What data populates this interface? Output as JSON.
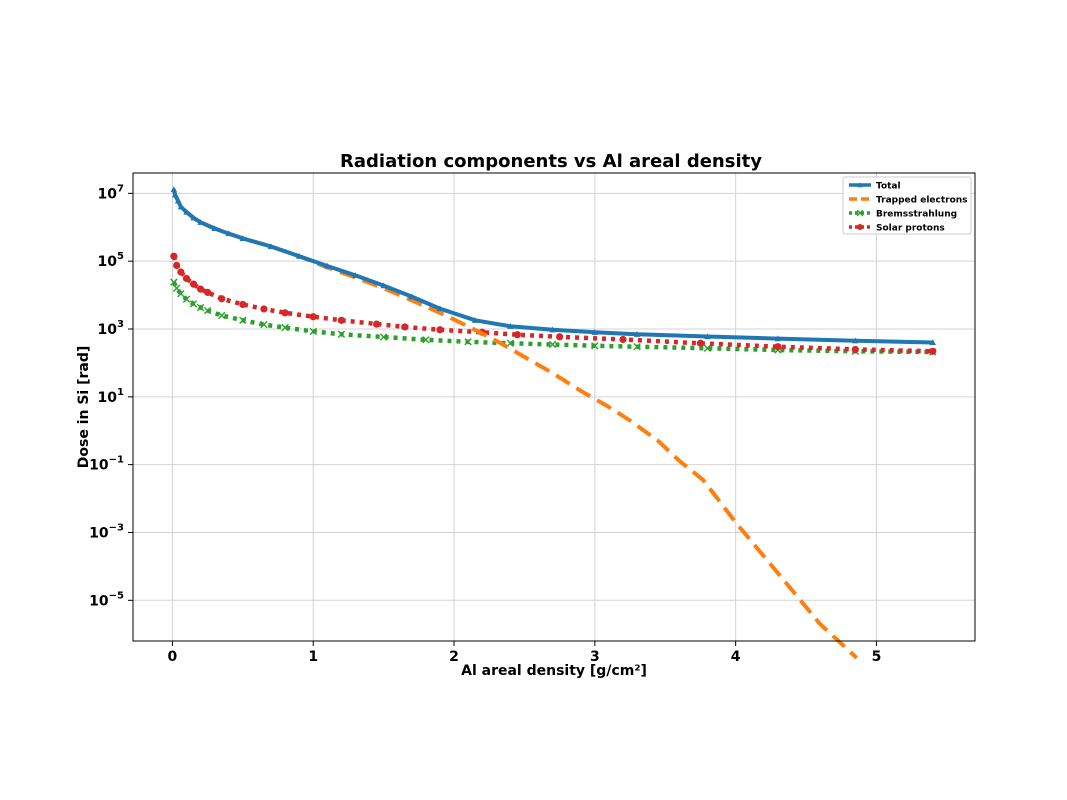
{
  "chart_data": {
    "type": "line",
    "title": "Radiation components vs Al areal density",
    "xlabel": "Al areal density [g/cm²]",
    "ylabel": "Dose in Si [rad]",
    "xlim": [
      -0.28,
      5.7
    ],
    "ylim_log10": [
      -6.2,
      7.6
    ],
    "yscale": "log",
    "grid": true,
    "legend_position": "top-right",
    "x_ticks": [
      "0",
      "1",
      "2",
      "3",
      "4",
      "5"
    ],
    "x_tick_values": [
      0,
      1,
      2,
      3,
      4,
      5
    ],
    "y_tick_exponents": [
      7,
      5,
      3,
      1,
      -1,
      -3,
      -5
    ],
    "series": [
      {
        "name": "Total",
        "color": "#1f77b4",
        "style": "solid",
        "marker": "triangle",
        "points": [
          [
            0.01,
            13000000
          ],
          [
            0.02,
            9000000
          ],
          [
            0.04,
            6000000
          ],
          [
            0.06,
            4000000
          ],
          [
            0.1,
            2800000
          ],
          [
            0.15,
            1900000
          ],
          [
            0.2,
            1400000
          ],
          [
            0.3,
            920000
          ],
          [
            0.4,
            650000
          ],
          [
            0.5,
            470000
          ],
          [
            0.7,
            270000
          ],
          [
            0.9,
            140000
          ],
          [
            1.1,
            72000
          ],
          [
            1.3,
            38000
          ],
          [
            1.5,
            19000
          ],
          [
            1.7,
            9000
          ],
          [
            1.9,
            4000
          ],
          [
            2.15,
            1800
          ],
          [
            2.4,
            1200
          ],
          [
            2.7,
            950
          ],
          [
            3.0,
            800
          ],
          [
            3.3,
            700
          ],
          [
            3.8,
            600
          ],
          [
            4.3,
            520
          ],
          [
            4.85,
            450
          ],
          [
            5.4,
            400
          ]
        ]
      },
      {
        "name": "Trapped electrons",
        "color": "#ff7f0e",
        "style": "dashed",
        "marker": "none",
        "points": [
          [
            0.01,
            13000000
          ],
          [
            0.02,
            9000000
          ],
          [
            0.04,
            6000000
          ],
          [
            0.06,
            4000000
          ],
          [
            0.1,
            2800000
          ],
          [
            0.15,
            1900000
          ],
          [
            0.2,
            1400000
          ],
          [
            0.3,
            920000
          ],
          [
            0.4,
            650000
          ],
          [
            0.5,
            470000
          ],
          [
            0.7,
            270000
          ],
          [
            0.9,
            140000
          ],
          [
            1.1,
            65000
          ],
          [
            1.3,
            33000
          ],
          [
            1.5,
            16000
          ],
          [
            1.7,
            7000
          ],
          [
            1.9,
            3000
          ],
          [
            2.1,
            1200
          ],
          [
            2.3,
            450
          ],
          [
            2.5,
            150
          ],
          [
            2.7,
            50
          ],
          [
            2.9,
            15
          ],
          [
            3.1,
            5
          ],
          [
            3.25,
            2
          ],
          [
            3.45,
            0.5
          ],
          [
            3.6,
            0.13
          ],
          [
            3.77,
            0.035
          ],
          [
            4.0,
            0.002
          ],
          [
            4.2,
            0.0002
          ],
          [
            4.4,
            2e-05
          ],
          [
            4.6,
            2e-06
          ],
          [
            4.86,
            2e-07
          ]
        ]
      },
      {
        "name": "Bremsstrahlung",
        "color": "#2ca02c",
        "style": "dotted",
        "marker": "x",
        "points": [
          [
            0.01,
            24000
          ],
          [
            0.03,
            16000
          ],
          [
            0.06,
            11000
          ],
          [
            0.1,
            7500
          ],
          [
            0.15,
            5500
          ],
          [
            0.2,
            4300
          ],
          [
            0.25,
            3500
          ],
          [
            0.35,
            2500
          ],
          [
            0.5,
            1800
          ],
          [
            0.65,
            1350
          ],
          [
            0.8,
            1100
          ],
          [
            1.0,
            850
          ],
          [
            1.2,
            700
          ],
          [
            1.5,
            580
          ],
          [
            1.8,
            480
          ],
          [
            2.1,
            420
          ],
          [
            2.4,
            380
          ],
          [
            2.7,
            350
          ],
          [
            3.0,
            320
          ],
          [
            3.3,
            300
          ],
          [
            3.8,
            270
          ],
          [
            4.3,
            240
          ],
          [
            4.85,
            220
          ],
          [
            5.4,
            210
          ]
        ]
      },
      {
        "name": "Solar protons",
        "color": "#d62728",
        "style": "dotted",
        "marker": "circle",
        "points": [
          [
            0.01,
            140000
          ],
          [
            0.03,
            75000
          ],
          [
            0.06,
            48000
          ],
          [
            0.1,
            31000
          ],
          [
            0.15,
            21000
          ],
          [
            0.2,
            15000
          ],
          [
            0.25,
            12000
          ],
          [
            0.35,
            7800
          ],
          [
            0.5,
            5300
          ],
          [
            0.65,
            3900
          ],
          [
            0.8,
            3000
          ],
          [
            1.0,
            2300
          ],
          [
            1.2,
            1800
          ],
          [
            1.45,
            1400
          ],
          [
            1.65,
            1150
          ],
          [
            1.9,
            950
          ],
          [
            2.2,
            800
          ],
          [
            2.45,
            680
          ],
          [
            2.75,
            590
          ],
          [
            3.2,
            490
          ],
          [
            3.75,
            380
          ],
          [
            4.3,
            300
          ],
          [
            4.85,
            250
          ],
          [
            5.4,
            220
          ]
        ]
      }
    ]
  }
}
